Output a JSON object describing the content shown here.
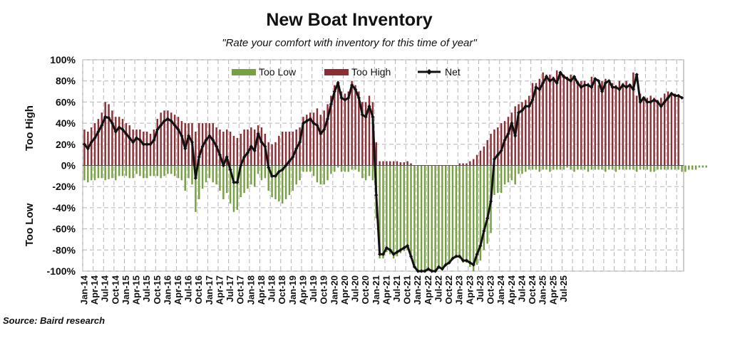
{
  "chart_data": {
    "type": "bar",
    "title": "New Boat Inventory",
    "subtitle": "\"Rate your comfort with inventory for this time of year\"",
    "source": "Source: Baird research",
    "ylabel_top": "Too High",
    "ylabel_bottom": "Too Low",
    "ylim": [
      -100,
      100
    ],
    "yticks": [
      -100,
      -80,
      -60,
      -40,
      -20,
      0,
      20,
      40,
      60,
      80,
      100
    ],
    "ytick_labels": [
      "-100%",
      "-80%",
      "-60%",
      "-40%",
      "-20%",
      "0%",
      "20%",
      "40%",
      "60%",
      "80%",
      "100%"
    ],
    "xtick_labels": [
      "Jan-14",
      "Apr-14",
      "Jul-14",
      "Oct-14",
      "Jan-15",
      "Apr-15",
      "Jul-15",
      "Oct-15",
      "Jan-16",
      "Apr-16",
      "Jul-16",
      "Oct-16",
      "Jan-17",
      "Apr-17",
      "Jul-17",
      "Oct-17",
      "Jan-18",
      "Apr-18",
      "Jul-18",
      "Oct-18",
      "Jan-19",
      "Apr-19",
      "Jul-19",
      "Oct-19",
      "Jan-20",
      "Apr-20",
      "Jul-20",
      "Oct-20",
      "Jan-21",
      "Apr-21",
      "Jul-21",
      "Oct-21",
      "Jan-22",
      "Apr-22",
      "Jul-22",
      "Oct-22",
      "Jan-23",
      "Apr-23",
      "Jul-23",
      "Oct-23",
      "Jan-24",
      "Apr-24",
      "Jul-24",
      "Oct-24",
      "Jan-25",
      "Apr-25",
      "Jul-25"
    ],
    "start": "Jan-14",
    "grid": true,
    "legend": {
      "position": "top",
      "entries": [
        "Too Low",
        "Too High",
        "Net"
      ]
    },
    "colors": {
      "too_low": "#77a043",
      "too_high": "#8b2e35",
      "net": "#111111",
      "grid": "#b5b5b5"
    },
    "series": [
      {
        "name": "Net",
        "values": [
          20,
          16,
          22,
          26,
          32,
          38,
          46,
          45,
          40,
          32,
          36,
          34,
          30,
          26,
          22,
          26,
          24,
          20,
          20,
          20,
          24,
          34,
          38,
          42,
          44,
          42,
          38,
          34,
          28,
          16,
          28,
          22,
          -12,
          8,
          18,
          24,
          28,
          24,
          18,
          10,
          0,
          8,
          -4,
          -16,
          -16,
          0,
          8,
          12,
          18,
          14,
          30,
          22,
          18,
          -2,
          -10,
          -10,
          -6,
          -4,
          0,
          4,
          8,
          16,
          22,
          40,
          42,
          44,
          40,
          38,
          30,
          34,
          44,
          58,
          70,
          78,
          64,
          62,
          64,
          76,
          72,
          64,
          48,
          46,
          56,
          46,
          -28,
          -84,
          -84,
          -78,
          -80,
          -84,
          -82,
          -80,
          -78,
          -76,
          -86,
          -96,
          -100,
          -100,
          -100,
          -98,
          -100,
          -100,
          -96,
          -98,
          -94,
          -92,
          -88,
          -86,
          -86,
          -90,
          -90,
          -92,
          -94,
          -84,
          -76,
          -62,
          -50,
          -34,
          6,
          10,
          14,
          24,
          30,
          40,
          28,
          50,
          52,
          56,
          56,
          62,
          74,
          72,
          78,
          84,
          80,
          82,
          78,
          88,
          84,
          82,
          80,
          84,
          78,
          74,
          76,
          76,
          74,
          82,
          80,
          70,
          78,
          80,
          74,
          74,
          72,
          76,
          74,
          76,
          72,
          86,
          60,
          64,
          60,
          60,
          62,
          60,
          56,
          60,
          64,
          68,
          66,
          66,
          64
        ]
      },
      {
        "name": "Too High",
        "values": [
          34,
          32,
          36,
          40,
          44,
          50,
          60,
          58,
          52,
          46,
          46,
          44,
          40,
          38,
          34,
          34,
          34,
          32,
          32,
          30,
          34,
          44,
          50,
          52,
          52,
          50,
          48,
          46,
          42,
          40,
          40,
          40,
          32,
          40,
          40,
          40,
          40,
          40,
          36,
          34,
          32,
          34,
          32,
          28,
          26,
          30,
          34,
          34,
          36,
          34,
          38,
          36,
          30,
          22,
          20,
          22,
          28,
          32,
          32,
          32,
          32,
          34,
          36,
          46,
          48,
          50,
          50,
          54,
          48,
          52,
          58,
          66,
          76,
          80,
          70,
          68,
          70,
          80,
          76,
          70,
          60,
          60,
          66,
          60,
          22,
          4,
          4,
          4,
          4,
          4,
          4,
          3,
          3,
          4,
          2,
          0,
          0,
          0,
          0,
          0,
          0,
          0,
          0,
          0,
          0,
          0,
          0,
          0,
          2,
          2,
          2,
          4,
          6,
          10,
          14,
          18,
          24,
          30,
          34,
          36,
          40,
          42,
          46,
          50,
          56,
          58,
          60,
          62,
          66,
          78,
          78,
          82,
          88,
          86,
          86,
          84,
          90,
          86,
          86,
          84,
          86,
          82,
          80,
          80,
          80,
          78,
          84,
          82,
          76,
          80,
          82,
          78,
          78,
          76,
          80,
          78,
          80,
          76,
          88,
          66,
          68,
          64,
          64,
          66,
          64,
          62,
          64,
          68,
          70,
          68,
          68,
          66
        ]
      },
      {
        "name": "Too Low",
        "values": [
          -14,
          -16,
          -14,
          -14,
          -12,
          -12,
          -14,
          -13,
          -12,
          -14,
          -10,
          -10,
          -10,
          -12,
          -12,
          -8,
          -10,
          -12,
          -12,
          -10,
          -10,
          -10,
          -12,
          -10,
          -8,
          -8,
          -10,
          -12,
          -14,
          -24,
          -12,
          -18,
          -44,
          -32,
          -22,
          -16,
          -12,
          -16,
          -18,
          -24,
          -32,
          -26,
          -36,
          -44,
          -42,
          -30,
          -26,
          -22,
          -18,
          -20,
          -8,
          -14,
          -12,
          -24,
          -30,
          -32,
          -34,
          -36,
          -32,
          -28,
          -24,
          -18,
          -14,
          -6,
          -6,
          -6,
          -10,
          -16,
          -18,
          -18,
          -14,
          -8,
          -6,
          -2,
          -6,
          -6,
          -6,
          -4,
          -4,
          -6,
          -12,
          -14,
          -10,
          -14,
          -50,
          -88,
          -88,
          -82,
          -84,
          -88,
          -86,
          -83,
          -81,
          -80,
          -88,
          -96,
          -100,
          -100,
          -100,
          -98,
          -100,
          -100,
          -96,
          -98,
          -94,
          -92,
          -88,
          -86,
          -88,
          -92,
          -92,
          -96,
          -100,
          -94,
          -90,
          -80,
          -74,
          -64,
          -28,
          -26,
          -26,
          -18,
          -16,
          -14,
          -18,
          -8,
          -8,
          -6,
          -4,
          -4,
          -4,
          -6,
          -4,
          -4,
          -6,
          -4,
          -4,
          -4,
          -4,
          -2,
          -4,
          -6,
          -4,
          -4,
          -4,
          -6,
          -4,
          -4,
          -4,
          -4,
          -6,
          -4,
          -4,
          -6,
          -4,
          -4,
          -4,
          -4,
          -4,
          -6,
          -4,
          -4,
          -4,
          -6,
          -6,
          -4,
          -4,
          -4,
          -4,
          -4,
          -4,
          -4,
          -6,
          -6,
          -4,
          -4,
          -4,
          -2,
          -2,
          -2
        ]
      }
    ]
  }
}
